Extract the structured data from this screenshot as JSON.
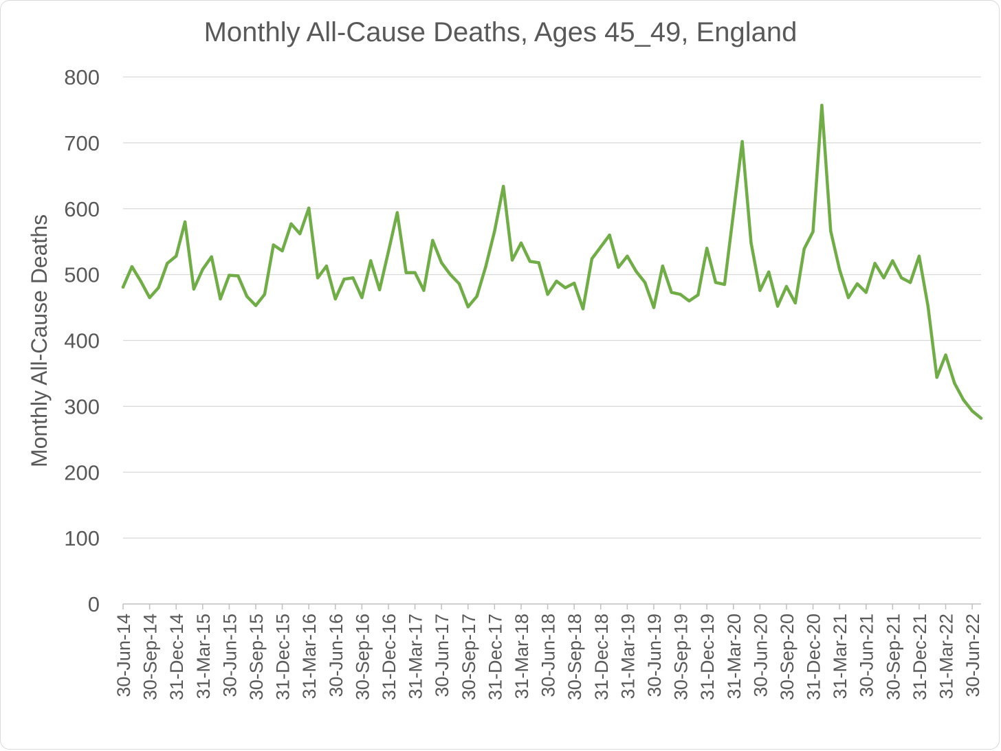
{
  "chart_data": {
    "type": "line",
    "title": "Monthly All-Cause Deaths, Ages 45_49, England",
    "xlabel": "",
    "ylabel": "Monthly All-Cause Deaths",
    "ylim": [
      0,
      800
    ],
    "yticks": [
      "0",
      "100",
      "200",
      "300",
      "400",
      "500",
      "600",
      "700",
      "800"
    ],
    "grid": true,
    "legend": "none",
    "x": [
      "30-Jun-14",
      "31-Jul-14",
      "31-Aug-14",
      "30-Sep-14",
      "31-Oct-14",
      "30-Nov-14",
      "31-Dec-14",
      "31-Jan-15",
      "28-Feb-15",
      "31-Mar-15",
      "30-Apr-15",
      "31-May-15",
      "30-Jun-15",
      "31-Jul-15",
      "31-Aug-15",
      "30-Sep-15",
      "31-Oct-15",
      "30-Nov-15",
      "31-Dec-15",
      "31-Jan-16",
      "29-Feb-16",
      "31-Mar-16",
      "30-Apr-16",
      "31-May-16",
      "30-Jun-16",
      "31-Jul-16",
      "31-Aug-16",
      "30-Sep-16",
      "31-Oct-16",
      "30-Nov-16",
      "31-Dec-16",
      "31-Jan-17",
      "28-Feb-17",
      "31-Mar-17",
      "30-Apr-17",
      "31-May-17",
      "30-Jun-17",
      "31-Jul-17",
      "31-Aug-17",
      "30-Sep-17",
      "31-Oct-17",
      "30-Nov-17",
      "31-Dec-17",
      "31-Jan-18",
      "28-Feb-18",
      "31-Mar-18",
      "30-Apr-18",
      "31-May-18",
      "30-Jun-18",
      "31-Jul-18",
      "31-Aug-18",
      "30-Sep-18",
      "31-Oct-18",
      "30-Nov-18",
      "31-Dec-18",
      "31-Jan-19",
      "28-Feb-19",
      "31-Mar-19",
      "30-Apr-19",
      "31-May-19",
      "30-Jun-19",
      "31-Jul-19",
      "31-Aug-19",
      "30-Sep-19",
      "31-Oct-19",
      "30-Nov-19",
      "31-Dec-19",
      "31-Jan-20",
      "29-Feb-20",
      "31-Mar-20",
      "30-Apr-20",
      "31-May-20",
      "30-Jun-20",
      "31-Jul-20",
      "31-Aug-20",
      "30-Sep-20",
      "31-Oct-20",
      "30-Nov-20",
      "31-Dec-20",
      "31-Jan-21",
      "28-Feb-21",
      "31-Mar-21",
      "30-Apr-21",
      "31-May-21",
      "30-Jun-21",
      "31-Jul-21",
      "31-Aug-21",
      "30-Sep-21",
      "31-Oct-21",
      "30-Nov-21",
      "31-Dec-21",
      "31-Jan-22",
      "28-Feb-22",
      "31-Mar-22",
      "30-Apr-22",
      "31-May-22",
      "30-Jun-22",
      "31-Jul-22"
    ],
    "xtick_labels": [
      "30-Jun-14",
      "30-Sep-14",
      "31-Dec-14",
      "31-Mar-15",
      "30-Jun-15",
      "30-Sep-15",
      "31-Dec-15",
      "31-Mar-16",
      "30-Jun-16",
      "30-Sep-16",
      "31-Dec-16",
      "31-Mar-17",
      "30-Jun-17",
      "30-Sep-17",
      "31-Dec-17",
      "31-Mar-18",
      "30-Jun-18",
      "30-Sep-18",
      "31-Dec-18",
      "31-Mar-19",
      "30-Jun-19",
      "30-Sep-19",
      "31-Dec-19",
      "31-Mar-20",
      "30-Jun-20",
      "30-Sep-20",
      "31-Dec-20",
      "31-Mar-21",
      "30-Jun-21",
      "30-Sep-21",
      "31-Dec-21",
      "31-Mar-22",
      "30-Jun-22"
    ],
    "series": [
      {
        "color": "#70ad47",
        "values": [
          481,
          512,
          490,
          465,
          480,
          517,
          528,
          580,
          478,
          508,
          527,
          463,
          499,
          498,
          467,
          453,
          470,
          545,
          536,
          577,
          562,
          601,
          495,
          513,
          463,
          493,
          495,
          465,
          521,
          477,
          535,
          594,
          503,
          503,
          476,
          552,
          518,
          500,
          486,
          451,
          467,
          512,
          566,
          634,
          522,
          548,
          520,
          518,
          470,
          490,
          480,
          487,
          448,
          524,
          542,
          560,
          511,
          528,
          505,
          488,
          450,
          513,
          473,
          470,
          460,
          469,
          540,
          488,
          485,
          593,
          702,
          548,
          476,
          504,
          452,
          482,
          457,
          539,
          565,
          757,
          566,
          508,
          465,
          486,
          473,
          517,
          495,
          521,
          495,
          488,
          528,
          452,
          344,
          378,
          335,
          310,
          293,
          282
        ]
      }
    ]
  }
}
